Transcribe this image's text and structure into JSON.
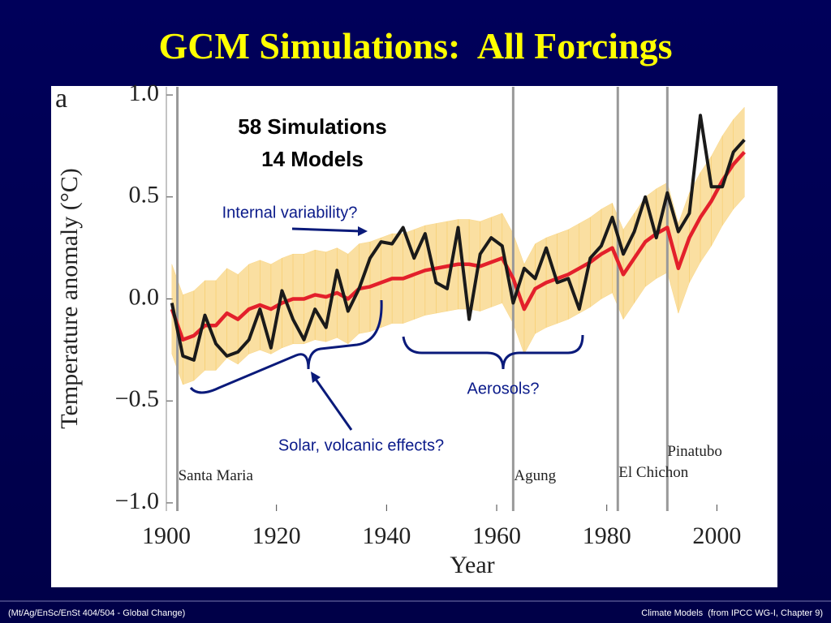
{
  "slide": {
    "title": "GCM Simulations:  All Forcings",
    "footer_left": "(Mt/Ag/EnSc/EnSt 404/504 - Global Change)",
    "footer_right": "Climate Models  (from IPCC WG-I, Chapter 9)"
  },
  "chart_data": {
    "type": "line",
    "panel_label": "a",
    "xlabel": "Year",
    "ylabel": "Temperature anomaly (°C)",
    "x": [
      1901,
      1903,
      1905,
      1907,
      1909,
      1911,
      1913,
      1915,
      1917,
      1919,
      1921,
      1923,
      1925,
      1927,
      1929,
      1931,
      1933,
      1935,
      1937,
      1939,
      1941,
      1943,
      1945,
      1947,
      1949,
      1951,
      1953,
      1955,
      1957,
      1959,
      1961,
      1963,
      1965,
      1967,
      1969,
      1971,
      1973,
      1975,
      1977,
      1979,
      1981,
      1983,
      1985,
      1987,
      1989,
      1991,
      1993,
      1995,
      1997,
      1999,
      2001,
      2003,
      2005
    ],
    "band": {
      "color": "#f6c453",
      "lower": [
        -0.27,
        -0.42,
        -0.4,
        -0.35,
        -0.35,
        -0.29,
        -0.32,
        -0.27,
        -0.25,
        -0.27,
        -0.24,
        -0.22,
        -0.22,
        -0.2,
        -0.21,
        -0.19,
        -0.22,
        -0.17,
        -0.16,
        -0.14,
        -0.12,
        -0.12,
        -0.1,
        -0.08,
        -0.07,
        -0.06,
        -0.05,
        -0.05,
        -0.06,
        -0.04,
        -0.02,
        -0.12,
        -0.27,
        -0.17,
        -0.14,
        -0.12,
        -0.1,
        -0.07,
        -0.04,
        0,
        0.03,
        -0.1,
        -0.02,
        0.06,
        0.1,
        0.13,
        -0.07,
        0.08,
        0.18,
        0.26,
        0.36,
        0.44,
        0.5
      ],
      "upper": [
        0.17,
        0.02,
        0.04,
        0.09,
        0.09,
        0.15,
        0.12,
        0.17,
        0.19,
        0.17,
        0.2,
        0.22,
        0.22,
        0.24,
        0.23,
        0.25,
        0.22,
        0.27,
        0.28,
        0.3,
        0.32,
        0.32,
        0.34,
        0.36,
        0.37,
        0.38,
        0.39,
        0.39,
        0.38,
        0.4,
        0.42,
        0.32,
        0.17,
        0.27,
        0.3,
        0.32,
        0.34,
        0.37,
        0.4,
        0.44,
        0.47,
        0.34,
        0.42,
        0.5,
        0.54,
        0.57,
        0.37,
        0.52,
        0.62,
        0.7,
        0.8,
        0.88,
        0.94
      ]
    },
    "series": [
      {
        "color": "#e3202b",
        "values": [
          -0.05,
          -0.2,
          -0.18,
          -0.13,
          -0.13,
          -0.07,
          -0.1,
          -0.05,
          -0.03,
          -0.05,
          -0.02,
          0,
          0,
          0.02,
          0.01,
          0.03,
          0,
          0.05,
          0.06,
          0.08,
          0.1,
          0.1,
          0.12,
          0.14,
          0.15,
          0.16,
          0.17,
          0.17,
          0.16,
          0.18,
          0.2,
          0.1,
          -0.05,
          0.05,
          0.08,
          0.1,
          0.12,
          0.15,
          0.18,
          0.22,
          0.25,
          0.12,
          0.2,
          0.28,
          0.32,
          0.35,
          0.15,
          0.3,
          0.4,
          0.48,
          0.58,
          0.66,
          0.72
        ]
      },
      {
        "color": "#1a1a1a",
        "values": [
          -0.02,
          -0.28,
          -0.3,
          -0.08,
          -0.22,
          -0.28,
          -0.26,
          -0.2,
          -0.05,
          -0.24,
          0.04,
          -0.1,
          -0.2,
          -0.05,
          -0.14,
          0.14,
          -0.06,
          0.05,
          0.2,
          0.28,
          0.27,
          0.35,
          0.2,
          0.32,
          0.08,
          0.05,
          0.35,
          -0.1,
          0.22,
          0.3,
          0.26,
          -0.02,
          0.15,
          0.1,
          0.25,
          0.08,
          0.1,
          -0.05,
          0.2,
          0.26,
          0.4,
          0.22,
          0.33,
          0.5,
          0.3,
          0.52,
          0.33,
          0.42,
          0.9,
          0.55,
          0.55,
          0.72,
          0.78
        ]
      }
    ],
    "xlim": [
      1900,
      2011
    ],
    "ylim": [
      -1.04,
      1.04
    ],
    "xticks": [
      1900,
      1920,
      1940,
      1960,
      1980,
      2000
    ],
    "yticks": [
      {
        "value": -1,
        "label": "−1.0"
      },
      {
        "value": -0.5,
        "label": "−0.5"
      },
      {
        "value": 0,
        "label": "0.0"
      },
      {
        "value": 0.5,
        "label": "0.5"
      },
      {
        "value": 1,
        "label": "1.0"
      }
    ],
    "volcanoes": [
      {
        "label": "Santa Maria",
        "x": 1902
      },
      {
        "label": "Agung",
        "x": 1963
      },
      {
        "label": "El Chichon",
        "x": 1982
      },
      {
        "label": "Pinatubo",
        "x": 1991
      }
    ],
    "annotations": [
      "58 Simulations",
      "14 Models",
      "Internal variability?",
      "Aerosols?",
      "Solar, volcanic effects?"
    ]
  }
}
